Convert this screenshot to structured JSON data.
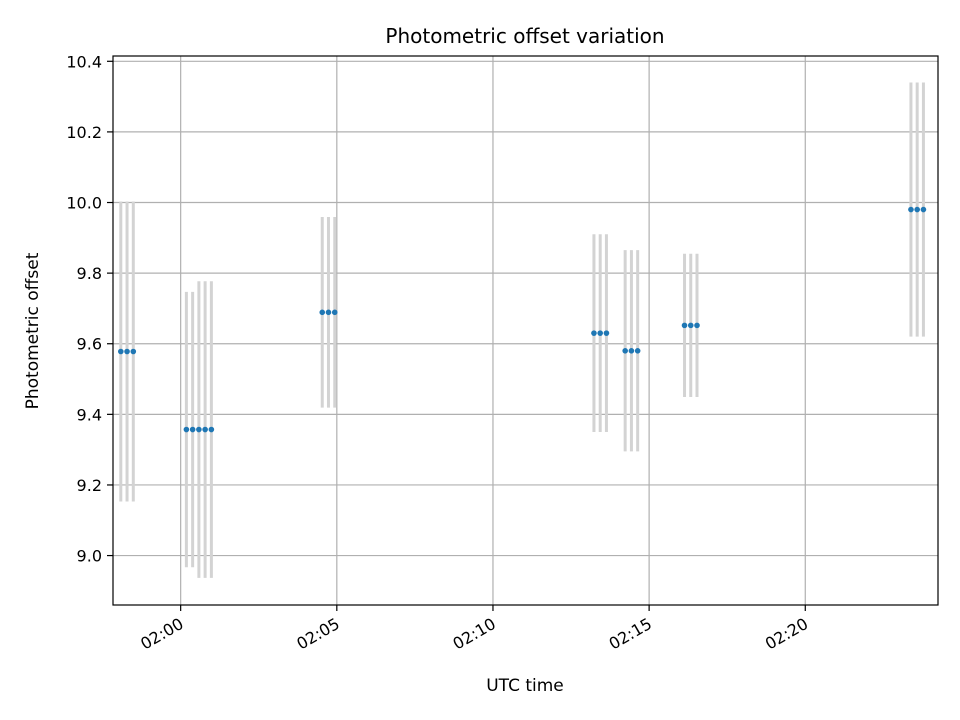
{
  "chart_data": {
    "type": "scatter",
    "title": "Photometric offset variation",
    "xlabel": "UTC time",
    "ylabel": "Photometric offset",
    "x_unit": "time",
    "xlim": [
      "01:57:50",
      "02:24:15"
    ],
    "ylim": [
      8.86,
      10.415
    ],
    "grid": true,
    "x_ticks": [
      "02:00",
      "02:05",
      "02:10",
      "02:15",
      "02:20"
    ],
    "y_ticks": [
      "9.0",
      "9.2",
      "9.4",
      "9.6",
      "9.8",
      "10.0",
      "10.2",
      "10.4"
    ],
    "colors": {
      "point": "#1f77b4",
      "errorbar": "#d3d3d3",
      "grid": "#b0b0b0"
    },
    "points": [
      {
        "x": "01:58:05",
        "y": 9.578,
        "yerr": 0.425
      },
      {
        "x": "01:58:17",
        "y": 9.578,
        "yerr": 0.425
      },
      {
        "x": "01:58:29",
        "y": 9.578,
        "yerr": 0.425
      },
      {
        "x": "02:00:11",
        "y": 9.357,
        "yerr": 0.39
      },
      {
        "x": "02:00:23",
        "y": 9.357,
        "yerr": 0.39
      },
      {
        "x": "02:00:35",
        "y": 9.357,
        "yerr": 0.42
      },
      {
        "x": "02:00:47",
        "y": 9.357,
        "yerr": 0.42
      },
      {
        "x": "02:00:59",
        "y": 9.357,
        "yerr": 0.42
      },
      {
        "x": "02:04:32",
        "y": 9.689,
        "yerr": 0.27
      },
      {
        "x": "02:04:44",
        "y": 9.689,
        "yerr": 0.27
      },
      {
        "x": "02:04:56",
        "y": 9.689,
        "yerr": 0.27
      },
      {
        "x": "02:13:14",
        "y": 9.63,
        "yerr": 0.28
      },
      {
        "x": "02:13:26",
        "y": 9.63,
        "yerr": 0.28
      },
      {
        "x": "02:13:38",
        "y": 9.63,
        "yerr": 0.28
      },
      {
        "x": "02:14:14",
        "y": 9.58,
        "yerr": 0.285
      },
      {
        "x": "02:14:26",
        "y": 9.58,
        "yerr": 0.285
      },
      {
        "x": "02:14:38",
        "y": 9.58,
        "yerr": 0.285
      },
      {
        "x": "02:16:08",
        "y": 9.652,
        "yerr": 0.203
      },
      {
        "x": "02:16:20",
        "y": 9.652,
        "yerr": 0.203
      },
      {
        "x": "02:16:32",
        "y": 9.652,
        "yerr": 0.203
      },
      {
        "x": "02:23:23",
        "y": 9.98,
        "yerr": 0.36
      },
      {
        "x": "02:23:35",
        "y": 9.98,
        "yerr": 0.36
      },
      {
        "x": "02:23:47",
        "y": 9.98,
        "yerr": 0.36
      }
    ]
  }
}
